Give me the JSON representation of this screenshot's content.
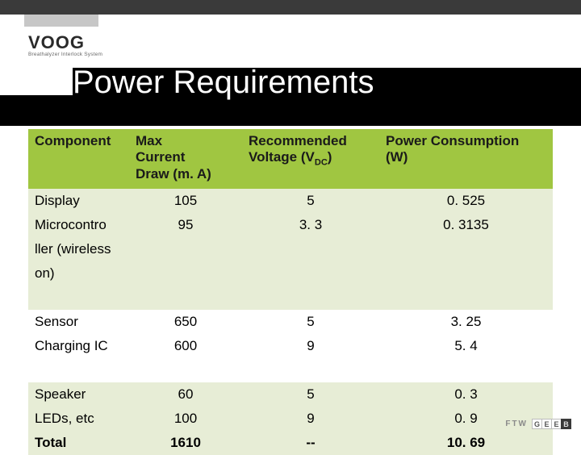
{
  "brand": {
    "name": "VOOG",
    "tagline": "Breathalyzer Interlock System"
  },
  "slide": {
    "title": "Power Requirements"
  },
  "table": {
    "columns": {
      "component": "Component",
      "max_current_line1": "Max",
      "max_current_line2": "Current",
      "max_current_line3": "Draw (m. A)",
      "voltage_line1": "Recommended",
      "voltage_line2_pre": "Voltage (V",
      "voltage_line2_sub": "DC",
      "voltage_line2_post": ")",
      "power_line1": "Power Consumption",
      "power_line2": "(W)"
    },
    "rows": [
      {
        "component": "Display",
        "current": "105",
        "voltage": "5",
        "power": "0. 525",
        "band": "light",
        "bold": false
      },
      {
        "component": "Microcontro",
        "current": "95",
        "voltage": "3. 3",
        "power": "0. 3135",
        "band": "light",
        "bold": false
      },
      {
        "component": "ller (wireless",
        "current": "",
        "voltage": "",
        "power": "",
        "band": "light",
        "bold": false
      },
      {
        "component": "on)",
        "current": "",
        "voltage": "",
        "power": "",
        "band": "light",
        "bold": false
      },
      {
        "component": " ",
        "current": "",
        "voltage": "",
        "power": "",
        "band": "light",
        "bold": false
      },
      {
        "component": "Sensor",
        "current": "650",
        "voltage": "5",
        "power": "3. 25",
        "band": "white",
        "bold": false
      },
      {
        "component": "Charging IC",
        "current": "600",
        "voltage": "9",
        "power": "5. 4",
        "band": "white",
        "bold": false
      },
      {
        "component": " ",
        "current": "",
        "voltage": "",
        "power": "",
        "band": "white",
        "bold": false
      },
      {
        "component": "Speaker",
        "current": "60",
        "voltage": "5",
        "power": "0. 3",
        "band": "light",
        "bold": false
      },
      {
        "component": "LEDs, etc",
        "current": "100",
        "voltage": "9",
        "power": "0. 9",
        "band": "light",
        "bold": false
      },
      {
        "component": "Total",
        "current": "1610",
        "voltage": "--",
        "power": "10. 69",
        "band": "light",
        "bold": true
      }
    ]
  },
  "footer": {
    "ftw": "FTW",
    "geeb": [
      "G",
      "E",
      "E",
      "B"
    ]
  },
  "colors": {
    "header_green": "#a0c641",
    "row_light": "#e7edd6",
    "top_bar": "#3a3a3a",
    "gray_block": "#c7c7c7"
  }
}
